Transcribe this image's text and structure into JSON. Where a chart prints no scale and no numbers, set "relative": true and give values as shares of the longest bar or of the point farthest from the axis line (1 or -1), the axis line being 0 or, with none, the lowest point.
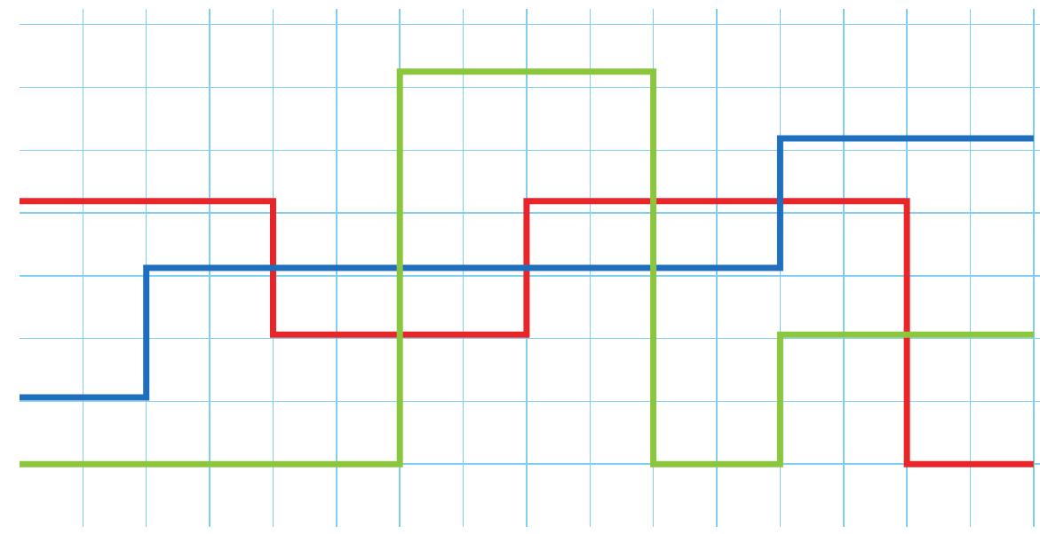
{
  "chart_data": {
    "type": "step",
    "relative": true,
    "grid": true,
    "categories": [
      null,
      null,
      null,
      null,
      null,
      null,
      null,
      null,
      null,
      null,
      null,
      null,
      null,
      null,
      null,
      null,
      null
    ],
    "series": [
      {
        "color": "#e8262a",
        "values": [
          0.67,
          0.67,
          0.67,
          0.67,
          0.33,
          0.33,
          0.33,
          0.33,
          0.67,
          0.67,
          0.67,
          0.67,
          0.67,
          0.67,
          0,
          0,
          0
        ]
      },
      {
        "color": "#1f6fbf",
        "values": [
          0.17,
          0.17,
          0.5,
          0.5,
          0.5,
          0.5,
          0.5,
          0.5,
          0.5,
          0.5,
          0.5,
          0.5,
          0.83,
          0.83,
          0.83,
          0.83,
          0.83
        ]
      },
      {
        "color": "#8cc63f",
        "values": [
          0,
          0,
          0,
          0,
          0,
          0,
          1,
          1,
          1,
          1,
          0,
          0,
          0.33,
          0.33,
          0.33,
          0.33,
          0.33
        ]
      }
    ]
  }
}
